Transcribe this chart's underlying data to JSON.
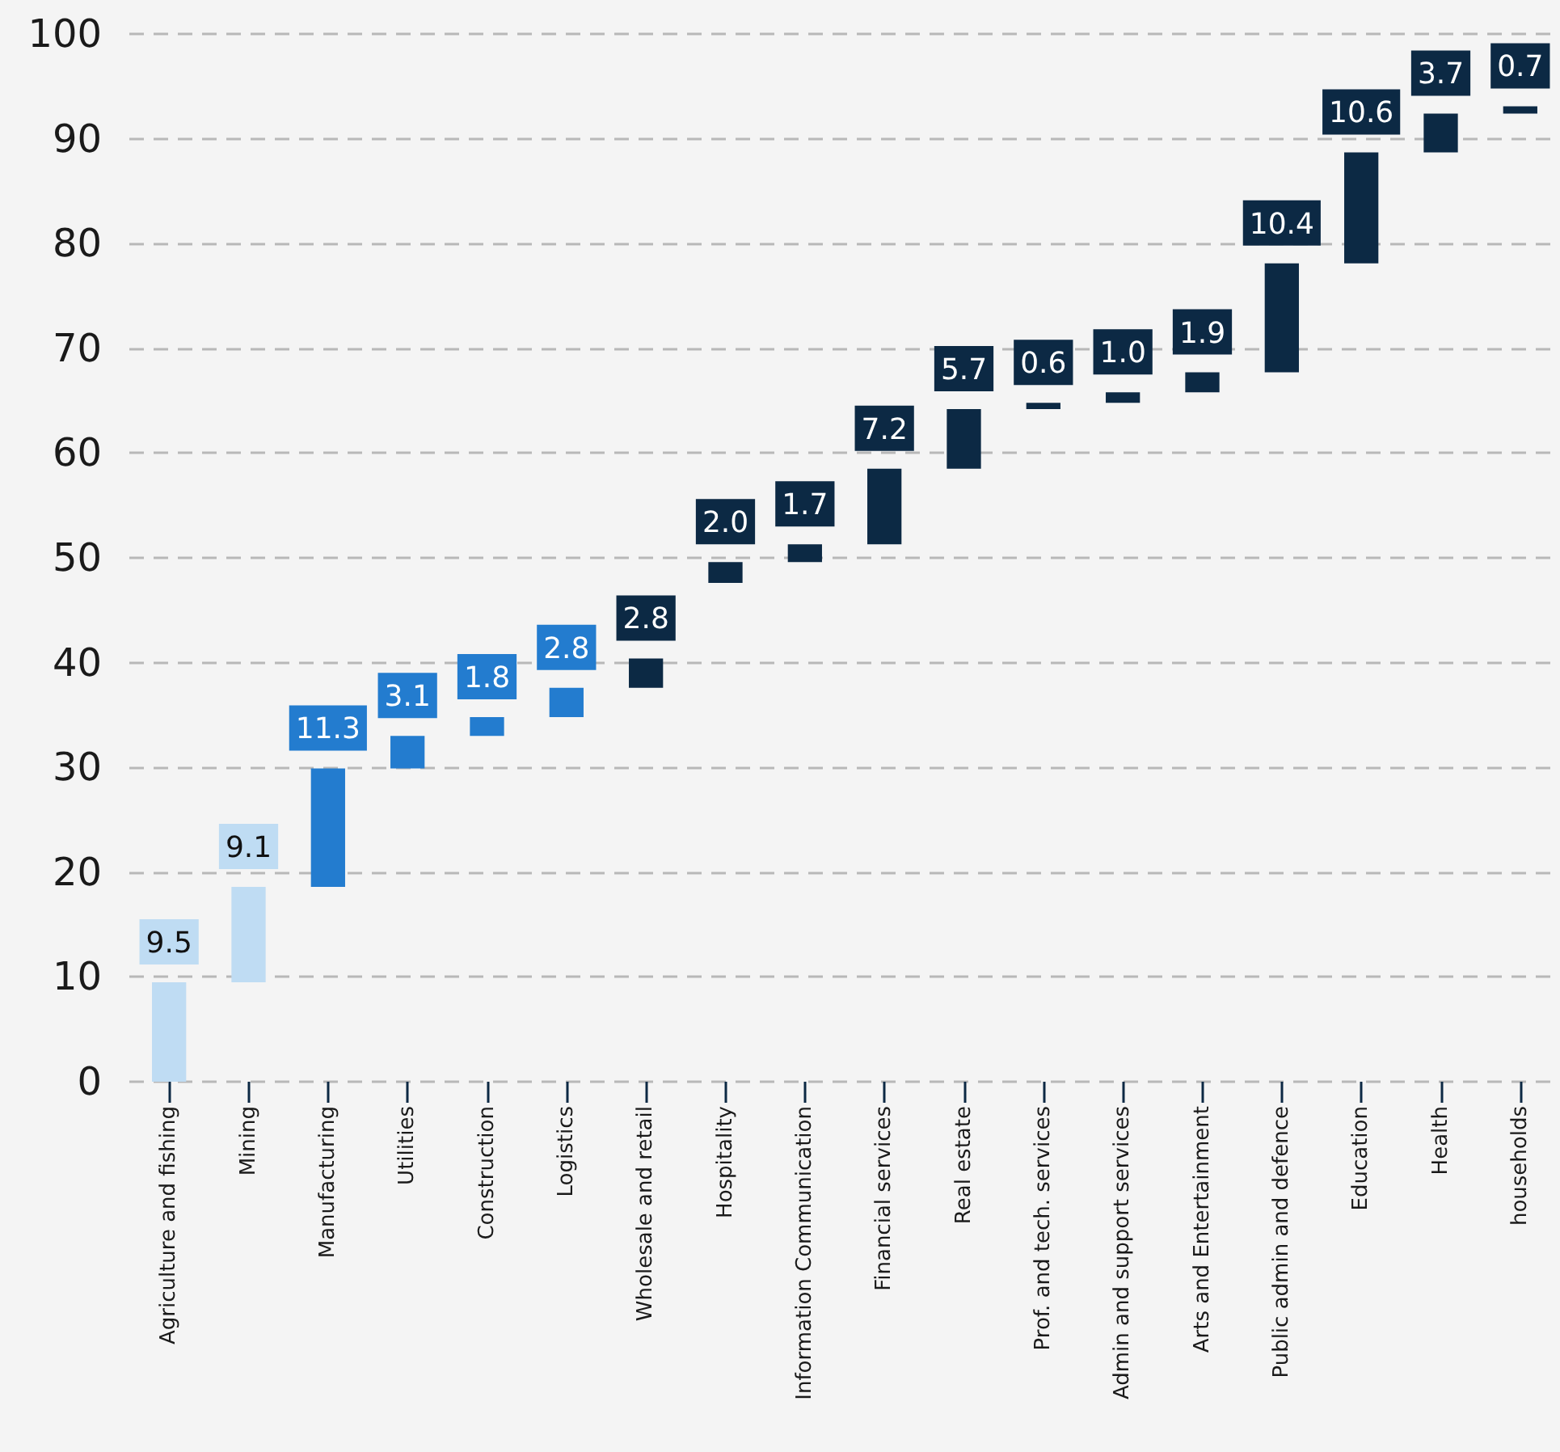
{
  "chart_data": {
    "type": "bar",
    "categories": [
      "Agriculture and fishing",
      "Mining",
      "Manufacturing",
      "Utilities",
      "Construction",
      "Logistics",
      "Wholesale and retail",
      "Hospitality",
      "Information Communication",
      "Financial services",
      "Real estate",
      "Prof. and tech. services",
      "Admin and support services",
      "Arts and Entertainment",
      "Public admin and defence",
      "Education",
      "Health",
      "households"
    ],
    "values": [
      9.5,
      9.1,
      11.3,
      3.1,
      1.8,
      2.8,
      2.8,
      2.0,
      1.7,
      7.2,
      5.7,
      0.6,
      1.0,
      1.9,
      10.4,
      10.6,
      3.7,
      0.7
    ],
    "base": [
      0,
      9.5,
      18.6,
      29.9,
      33.0,
      34.8,
      37.6,
      47.6,
      49.6,
      51.3,
      58.5,
      64.2,
      64.8,
      65.8,
      67.7,
      78.1,
      88.7,
      92.4
    ],
    "value_labels": [
      "9.5",
      "9.1",
      "11.3",
      "3.1",
      "1.8",
      "2.8",
      "2.8",
      "2.0",
      "1.7",
      "7.2",
      "5.7",
      "0.6",
      "1.0",
      "1.9",
      "10.4",
      "10.6",
      "3.7",
      "0.7"
    ],
    "colors": [
      "#bfdcf3",
      "#bfdcf3",
      "#237ccf",
      "#237ccf",
      "#237ccf",
      "#237ccf",
      "#0c2944",
      "#0c2944",
      "#0c2944",
      "#0c2944",
      "#0c2944",
      "#0c2944",
      "#0c2944",
      "#0c2944",
      "#0c2944",
      "#0c2944",
      "#0c2944",
      "#0c2944"
    ],
    "ylim": [
      0,
      100
    ],
    "yticks": [
      0,
      10,
      20,
      30,
      40,
      50,
      60,
      70,
      80,
      90,
      100
    ],
    "grid": "y"
  }
}
